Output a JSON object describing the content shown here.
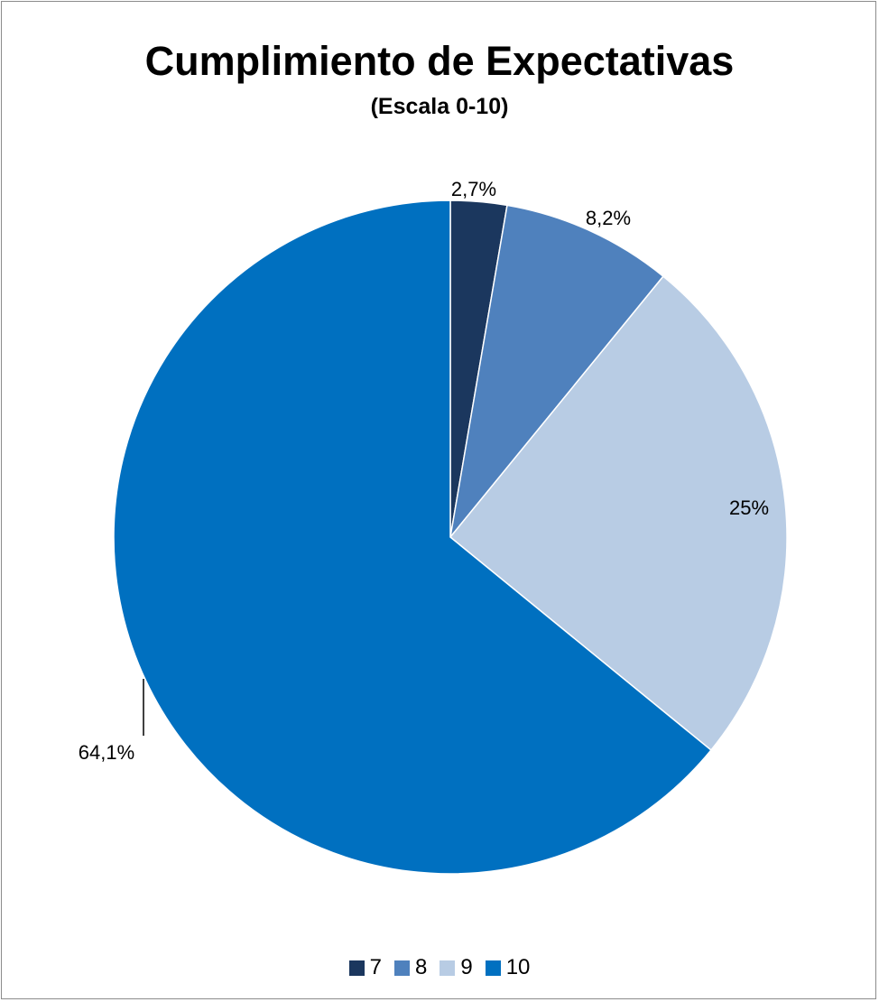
{
  "chart_data": {
    "type": "pie",
    "title": "Cumplimiento de Expectativas",
    "subtitle": "(Escala 0-10)",
    "slices": [
      {
        "category": "7",
        "value": 2.7,
        "label": "2,7%",
        "color": "#1b375e"
      },
      {
        "category": "8",
        "value": 8.2,
        "label": "8,2%",
        "color": "#4f81bd"
      },
      {
        "category": "9",
        "value": 25.0,
        "label": "25%",
        "color": "#b8cce4"
      },
      {
        "category": "10",
        "value": 64.1,
        "label": "64,1%",
        "color": "#0070c0"
      }
    ],
    "start_angle": "12 o'clock",
    "direction": "clockwise",
    "legend_position": "bottom"
  }
}
